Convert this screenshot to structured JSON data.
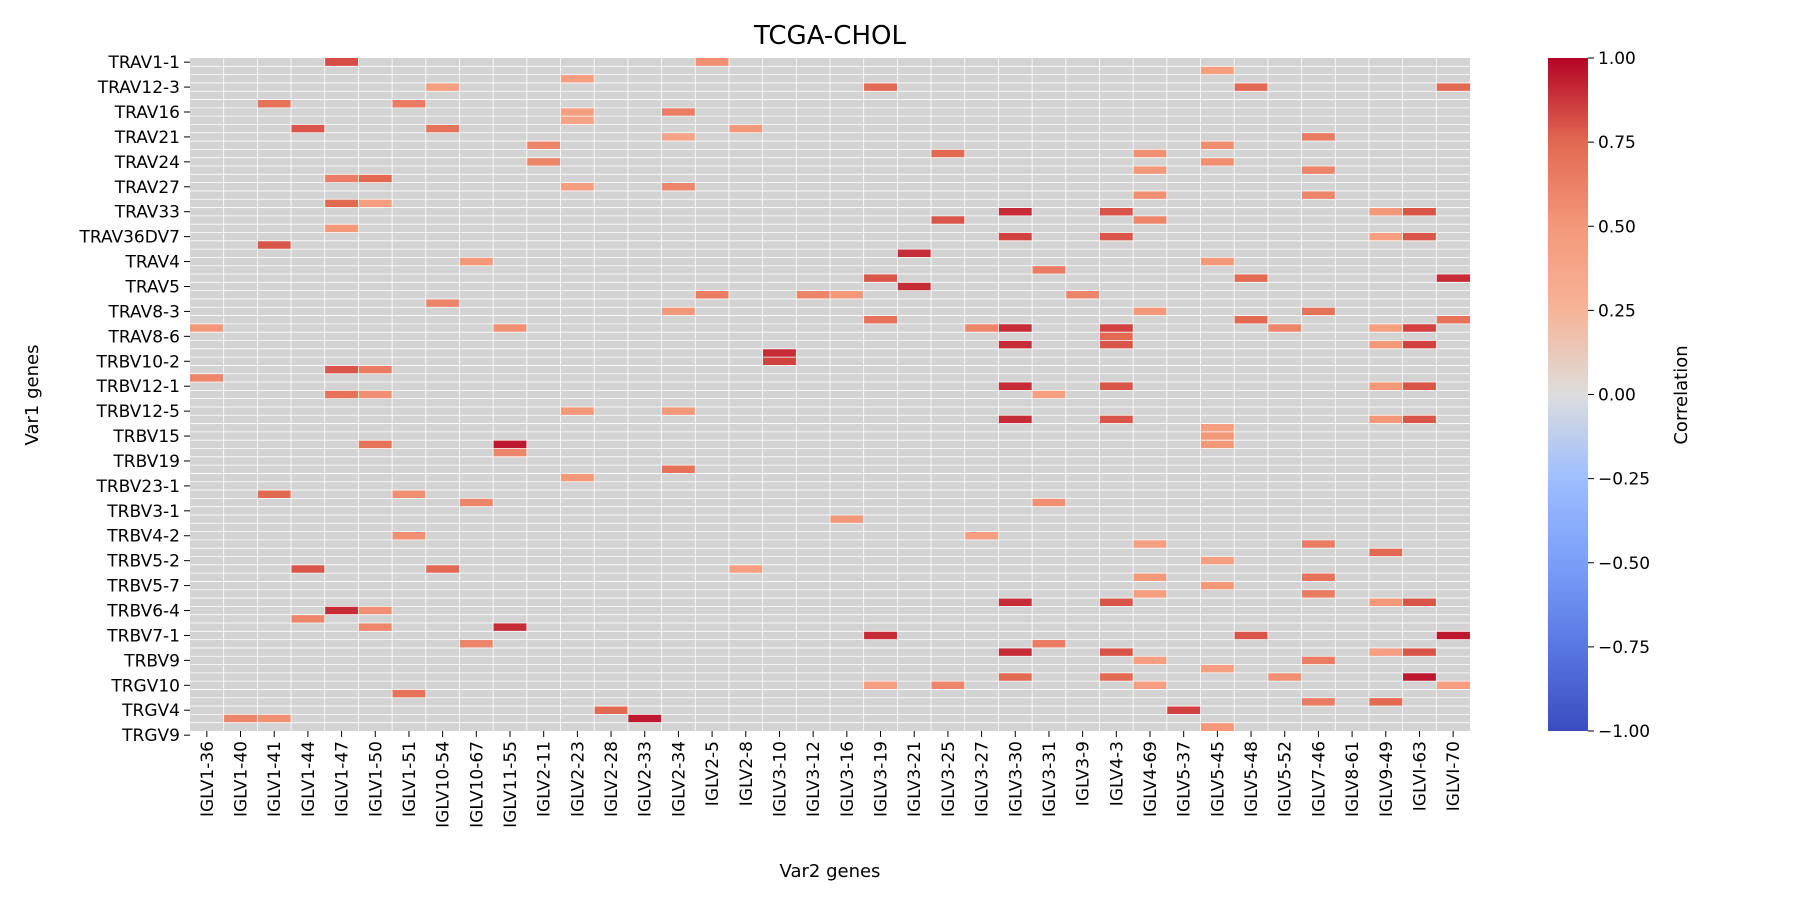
{
  "chart_data": {
    "type": "heatmap",
    "title": "TCGA-CHOL",
    "xlabel": "Var2 genes",
    "ylabel": "Var1 genes",
    "x_tick_labels": [
      "IGLV1-36",
      "IGLV1-40",
      "IGLV1-41",
      "IGLV1-44",
      "IGLV1-47",
      "IGLV1-50",
      "IGLV1-51",
      "IGLV10-54",
      "IGLV10-67",
      "IGLV11-55",
      "IGLV2-11",
      "IGLV2-23",
      "IGLV2-28",
      "IGLV2-33",
      "IGLV2-34",
      "IGLV2-5",
      "IGLV2-8",
      "IGLV3-10",
      "IGLV3-12",
      "IGLV3-16",
      "IGLV3-19",
      "IGLV3-21",
      "IGLV3-25",
      "IGLV3-27",
      "IGLV3-30",
      "IGLV3-31",
      "IGLV3-9",
      "IGLV4-3",
      "IGLV4-69",
      "IGLV5-37",
      "IGLV5-45",
      "IGLV5-48",
      "IGLV5-52",
      "IGLV7-46",
      "IGLV8-61",
      "IGLV9-49",
      "IGLVI-63",
      "IGLVI-70"
    ],
    "y_tick_labels": [
      "TRAV1-1",
      "TRAV12-3",
      "TRAV16",
      "TRAV21",
      "TRAV24",
      "TRAV27",
      "TRAV33",
      "TRAV36DV7",
      "TRAV4",
      "TRAV5",
      "TRAV8-3",
      "TRAV8-6",
      "TRBV10-2",
      "TRBV12-1",
      "TRBV12-5",
      "TRBV15",
      "TRBV19",
      "TRBV23-1",
      "TRBV3-1",
      "TRBV4-2",
      "TRBV5-2",
      "TRBV5-7",
      "TRBV6-4",
      "TRBV7-1",
      "TRBV9",
      "TRGV10",
      "TRGV4",
      "TRGV9"
    ],
    "n_rows": 81,
    "n_cols": 38,
    "y_tick_every": 3,
    "missing_color": "#d3d3d3",
    "grid": true,
    "colormap": "coolwarm",
    "vmin": -1.0,
    "vmax": 1.0,
    "colorbar": {
      "label": "Correlation",
      "ticks": [
        1.0,
        0.75,
        0.5,
        0.25,
        0.0,
        -0.25,
        -0.5,
        -0.75,
        -1.0
      ],
      "tick_labels": [
        "1.00",
        "0.75",
        "0.50",
        "0.25",
        "0.00",
        "−0.25",
        "−0.50",
        "−0.75",
        "−1.00"
      ]
    },
    "cells": [
      [
        0,
        4,
        0.82
      ],
      [
        0,
        15,
        0.55
      ],
      [
        1,
        30,
        0.45
      ],
      [
        2,
        11,
        0.45
      ],
      [
        3,
        7,
        0.45
      ],
      [
        3,
        20,
        0.75
      ],
      [
        3,
        31,
        0.75
      ],
      [
        3,
        37,
        0.75
      ],
      [
        5,
        2,
        0.7
      ],
      [
        5,
        6,
        0.65
      ],
      [
        6,
        11,
        0.45
      ],
      [
        6,
        14,
        0.65
      ],
      [
        7,
        11,
        0.4
      ],
      [
        8,
        3,
        0.8
      ],
      [
        8,
        7,
        0.7
      ],
      [
        8,
        16,
        0.5
      ],
      [
        9,
        14,
        0.4
      ],
      [
        9,
        33,
        0.65
      ],
      [
        10,
        10,
        0.6
      ],
      [
        10,
        30,
        0.55
      ],
      [
        11,
        22,
        0.75
      ],
      [
        11,
        28,
        0.55
      ],
      [
        12,
        10,
        0.6
      ],
      [
        12,
        30,
        0.55
      ],
      [
        13,
        28,
        0.5
      ],
      [
        13,
        33,
        0.6
      ],
      [
        14,
        4,
        0.65
      ],
      [
        14,
        5,
        0.75
      ],
      [
        15,
        11,
        0.45
      ],
      [
        15,
        14,
        0.6
      ],
      [
        16,
        28,
        0.55
      ],
      [
        16,
        33,
        0.6
      ],
      [
        17,
        4,
        0.75
      ],
      [
        17,
        5,
        0.45
      ],
      [
        18,
        24,
        0.9
      ],
      [
        18,
        27,
        0.8
      ],
      [
        18,
        35,
        0.5
      ],
      [
        18,
        36,
        0.8
      ],
      [
        19,
        22,
        0.8
      ],
      [
        19,
        28,
        0.6
      ],
      [
        20,
        4,
        0.5
      ],
      [
        21,
        24,
        0.85
      ],
      [
        21,
        27,
        0.8
      ],
      [
        21,
        35,
        0.45
      ],
      [
        21,
        36,
        0.8
      ],
      [
        22,
        2,
        0.8
      ],
      [
        23,
        21,
        0.9
      ],
      [
        24,
        8,
        0.5
      ],
      [
        24,
        30,
        0.5
      ],
      [
        25,
        25,
        0.65
      ],
      [
        26,
        20,
        0.8
      ],
      [
        26,
        31,
        0.75
      ],
      [
        26,
        37,
        0.9
      ],
      [
        27,
        21,
        0.9
      ],
      [
        28,
        15,
        0.65
      ],
      [
        28,
        18,
        0.6
      ],
      [
        28,
        19,
        0.5
      ],
      [
        28,
        26,
        0.6
      ],
      [
        29,
        7,
        0.6
      ],
      [
        30,
        14,
        0.5
      ],
      [
        30,
        28,
        0.5
      ],
      [
        30,
        33,
        0.7
      ],
      [
        31,
        20,
        0.7
      ],
      [
        31,
        31,
        0.75
      ],
      [
        31,
        37,
        0.7
      ],
      [
        32,
        0,
        0.5
      ],
      [
        32,
        9,
        0.55
      ],
      [
        32,
        23,
        0.6
      ],
      [
        32,
        24,
        0.9
      ],
      [
        32,
        27,
        0.85
      ],
      [
        32,
        32,
        0.6
      ],
      [
        32,
        35,
        0.45
      ],
      [
        32,
        36,
        0.85
      ],
      [
        33,
        27,
        0.75
      ],
      [
        34,
        24,
        0.9
      ],
      [
        34,
        27,
        0.8
      ],
      [
        34,
        35,
        0.5
      ],
      [
        34,
        36,
        0.85
      ],
      [
        35,
        17,
        0.9
      ],
      [
        36,
        17,
        0.85
      ],
      [
        37,
        4,
        0.8
      ],
      [
        37,
        5,
        0.65
      ],
      [
        38,
        0,
        0.6
      ],
      [
        39,
        24,
        0.9
      ],
      [
        39,
        27,
        0.8
      ],
      [
        39,
        35,
        0.5
      ],
      [
        39,
        36,
        0.8
      ],
      [
        40,
        4,
        0.7
      ],
      [
        40,
        5,
        0.55
      ],
      [
        40,
        25,
        0.45
      ],
      [
        42,
        11,
        0.5
      ],
      [
        42,
        14,
        0.5
      ],
      [
        43,
        24,
        0.9
      ],
      [
        43,
        27,
        0.8
      ],
      [
        43,
        35,
        0.5
      ],
      [
        43,
        36,
        0.8
      ],
      [
        44,
        30,
        0.45
      ],
      [
        45,
        30,
        0.5
      ],
      [
        46,
        5,
        0.7
      ],
      [
        46,
        9,
        0.95
      ],
      [
        46,
        30,
        0.5
      ],
      [
        47,
        9,
        0.6
      ],
      [
        49,
        14,
        0.7
      ],
      [
        50,
        11,
        0.5
      ],
      [
        52,
        2,
        0.75
      ],
      [
        52,
        6,
        0.55
      ],
      [
        53,
        8,
        0.6
      ],
      [
        53,
        25,
        0.55
      ],
      [
        55,
        19,
        0.5
      ],
      [
        57,
        6,
        0.55
      ],
      [
        57,
        23,
        0.45
      ],
      [
        58,
        28,
        0.45
      ],
      [
        58,
        33,
        0.65
      ],
      [
        59,
        35,
        0.75
      ],
      [
        60,
        30,
        0.45
      ],
      [
        61,
        3,
        0.8
      ],
      [
        61,
        7,
        0.75
      ],
      [
        61,
        16,
        0.45
      ],
      [
        62,
        28,
        0.5
      ],
      [
        62,
        33,
        0.7
      ],
      [
        63,
        30,
        0.5
      ],
      [
        64,
        28,
        0.45
      ],
      [
        64,
        33,
        0.65
      ],
      [
        65,
        24,
        0.9
      ],
      [
        65,
        27,
        0.8
      ],
      [
        65,
        35,
        0.5
      ],
      [
        65,
        36,
        0.8
      ],
      [
        66,
        4,
        0.9
      ],
      [
        66,
        5,
        0.55
      ],
      [
        67,
        3,
        0.6
      ],
      [
        68,
        5,
        0.6
      ],
      [
        68,
        9,
        0.9
      ],
      [
        69,
        20,
        0.9
      ],
      [
        69,
        31,
        0.8
      ],
      [
        69,
        37,
        0.95
      ],
      [
        70,
        8,
        0.6
      ],
      [
        70,
        25,
        0.65
      ],
      [
        71,
        24,
        0.9
      ],
      [
        71,
        27,
        0.8
      ],
      [
        71,
        35,
        0.45
      ],
      [
        71,
        36,
        0.8
      ],
      [
        72,
        28,
        0.45
      ],
      [
        72,
        33,
        0.65
      ],
      [
        73,
        30,
        0.45
      ],
      [
        74,
        24,
        0.75
      ],
      [
        74,
        27,
        0.75
      ],
      [
        74,
        32,
        0.55
      ],
      [
        74,
        36,
        0.95
      ],
      [
        75,
        20,
        0.45
      ],
      [
        75,
        22,
        0.6
      ],
      [
        75,
        28,
        0.45
      ],
      [
        75,
        37,
        0.45
      ],
      [
        76,
        6,
        0.7
      ],
      [
        77,
        33,
        0.65
      ],
      [
        77,
        35,
        0.75
      ],
      [
        78,
        12,
        0.75
      ],
      [
        78,
        29,
        0.85
      ],
      [
        79,
        1,
        0.6
      ],
      [
        79,
        2,
        0.55
      ],
      [
        79,
        13,
        0.95
      ],
      [
        80,
        30,
        0.5
      ]
    ]
  }
}
